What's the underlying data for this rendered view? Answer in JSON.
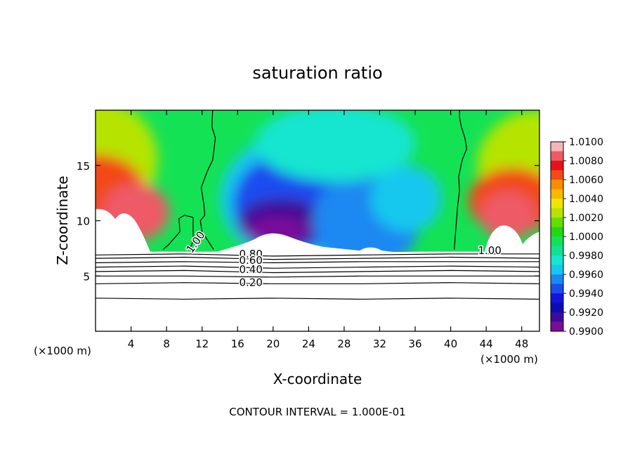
{
  "chart_data": {
    "type": "heatmap",
    "title": "saturation ratio",
    "xlabel": "X-coordinate",
    "ylabel": "Z-coordinate",
    "x_unit_left": "(×1000 m)",
    "x_unit_right": "(×1000 m)",
    "xlim": [
      0,
      50
    ],
    "ylim": [
      0,
      20
    ],
    "x_ticks": [
      4,
      8,
      12,
      16,
      20,
      24,
      28,
      32,
      36,
      40,
      44,
      48
    ],
    "x_tick_labels": [
      "4",
      "8",
      "12",
      "16",
      "20",
      "24",
      "28",
      "32",
      "36",
      "40",
      "44",
      "48"
    ],
    "y_ticks": [
      5,
      10,
      15
    ],
    "y_tick_labels": [
      "5",
      "10",
      "15"
    ],
    "colorbar": {
      "range": [
        0.99,
        1.01
      ],
      "labels": [
        "1.0100",
        "1.0080",
        "1.0060",
        "1.0040",
        "1.0020",
        "1.0000",
        "0.9980",
        "0.9960",
        "0.9940",
        "0.9920",
        "0.9900"
      ],
      "colors": [
        "#f6b4b4",
        "#ee5a66",
        "#e8101a",
        "#f24a18",
        "#fa8c00",
        "#f8b800",
        "#eee600",
        "#b6e400",
        "#66dd00",
        "#22d812",
        "#14e255",
        "#12e095",
        "#17e5d0",
        "#16c8ee",
        "#1c88f2",
        "#1b4cee",
        "#1414dc",
        "#0c0cb4",
        "#3c0c96",
        "#7a0c9a"
      ]
    },
    "colored_region_z_min": 7.2,
    "contour_interval_text": "CONTOUR INTERVAL = 1.000E-01",
    "contour_labels": [
      "1.00",
      "1.00",
      "0.80",
      "0.60",
      "0.40",
      "0.20"
    ],
    "contour_lines": [
      {
        "level": 1.0,
        "label": "1.00",
        "x": [
          10.6,
          11.0,
          11.0,
          10.0,
          9.4,
          9.5,
          8.2,
          7.6
        ],
        "z": [
          7.4,
          8.2,
          10.3,
          10.5,
          10.2,
          9.0,
          7.8,
          7.4
        ]
      },
      {
        "level": 1.0,
        "label": "",
        "x": [
          13.3,
          12.0,
          11.8,
          12.3,
          12.2,
          11.9,
          12.6,
          13.2,
          13.5,
          13.1,
          13.2
        ],
        "z": [
          7.4,
          9.0,
          10.0,
          10.5,
          11.5,
          13.0,
          14.5,
          15.5,
          17.5,
          18.5,
          20.0
        ]
      },
      {
        "level": 1.0,
        "label": "",
        "x": [
          40.4,
          40.6,
          40.8,
          41.0,
          40.9,
          41.3,
          41.8,
          41.6,
          41.2,
          41.0,
          41.0
        ],
        "z": [
          7.4,
          9.5,
          11.5,
          12.7,
          14.0,
          15.5,
          16.5,
          17.5,
          18.5,
          19.3,
          20.0
        ]
      },
      {
        "level": 0.8,
        "label": "0.80",
        "x": [
          0,
          10,
          20,
          30,
          40,
          50
        ],
        "z": [
          6.9,
          7.0,
          6.8,
          6.9,
          7.0,
          7.0
        ]
      },
      {
        "level": 0.7,
        "label": "",
        "x": [
          0,
          10,
          20,
          30,
          40,
          50
        ],
        "z": [
          6.6,
          6.7,
          6.5,
          6.6,
          6.7,
          6.6
        ]
      },
      {
        "level": 0.6,
        "label": "0.60",
        "x": [
          0,
          10,
          20,
          30,
          40,
          50
        ],
        "z": [
          6.2,
          6.3,
          6.2,
          6.3,
          6.3,
          6.3
        ]
      },
      {
        "level": 0.5,
        "label": "",
        "x": [
          0,
          10,
          20,
          30,
          40,
          50
        ],
        "z": [
          5.8,
          5.9,
          5.7,
          5.8,
          5.9,
          5.8
        ]
      },
      {
        "level": 0.4,
        "label": "0.40",
        "x": [
          0,
          10,
          20,
          30,
          40,
          50
        ],
        "z": [
          5.4,
          5.5,
          5.3,
          5.4,
          5.5,
          5.4
        ]
      },
      {
        "level": 0.3,
        "label": "",
        "x": [
          0,
          10,
          20,
          30,
          40,
          50
        ],
        "z": [
          5.0,
          5.0,
          4.9,
          5.0,
          5.0,
          5.0
        ]
      },
      {
        "level": 0.2,
        "label": "0.20",
        "x": [
          0,
          10,
          20,
          30,
          40,
          50
        ],
        "z": [
          4.3,
          4.4,
          4.3,
          4.3,
          4.4,
          4.3
        ]
      },
      {
        "level": 0.1,
        "label": "",
        "x": [
          0,
          10,
          20,
          30,
          40,
          50
        ],
        "z": [
          3.0,
          2.9,
          3.0,
          2.9,
          3.0,
          2.9
        ]
      }
    ],
    "field_features": [
      {
        "label": "",
        "x": 4.5,
        "z": 12.5,
        "value": 1.008
      },
      {
        "label": "",
        "x": 46.5,
        "z": 11.5,
        "value": 1.008
      },
      {
        "label": "",
        "x": 21.0,
        "z": 9.5,
        "value": 0.991
      },
      {
        "label": "",
        "x": 22.0,
        "z": 12.5,
        "value": 0.9945
      },
      {
        "label": "",
        "x": 31.0,
        "z": 10.5,
        "value": 0.995
      },
      {
        "label": "",
        "x": 26.0,
        "z": 17.0,
        "value": 0.9975
      }
    ]
  }
}
